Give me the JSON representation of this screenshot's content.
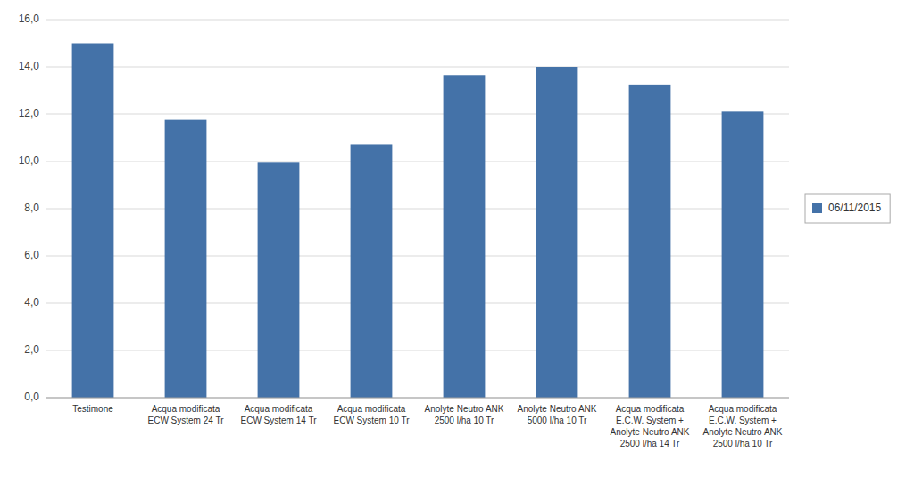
{
  "chart_data": {
    "type": "bar",
    "categories": [
      "Testimone",
      "Acqua modificata\nECW System 24 Tr",
      "Acqua modificata\nECW System 14 Tr",
      "Acqua modificata\nECW System 10 Tr",
      "Anolyte Neutro ANK\n2500 l/ha 10 Tr",
      "Anolyte Neutro ANK\n5000 l/ha 10 Tr",
      "Acqua modificata\nE.C.W. System +\nAnolyte Neutro ANK\n2500 l/ha 14 Tr",
      "Acqua modificata\nE.C.W. System +\nAnolyte Neutro ANK\n2500 l/ha 10 Tr"
    ],
    "series": [
      {
        "name": "06/11/2015",
        "color": "#4472a8",
        "values": [
          15.0,
          11.75,
          9.95,
          10.7,
          13.65,
          14.0,
          13.25,
          12.1
        ]
      }
    ],
    "ylim": [
      0,
      16.0
    ],
    "yticks": [
      {
        "value": 0.0,
        "label": "0,0"
      },
      {
        "value": 2.0,
        "label": "2,0"
      },
      {
        "value": 4.0,
        "label": "4,0"
      },
      {
        "value": 6.0,
        "label": "6,0"
      },
      {
        "value": 8.0,
        "label": "8,0"
      },
      {
        "value": 10.0,
        "label": "10,0"
      },
      {
        "value": 12.0,
        "label": "12,0"
      },
      {
        "value": 14.0,
        "label": "14,0"
      },
      {
        "value": 16.0,
        "label": "16,0"
      }
    ],
    "grid": true,
    "legend": "right"
  }
}
